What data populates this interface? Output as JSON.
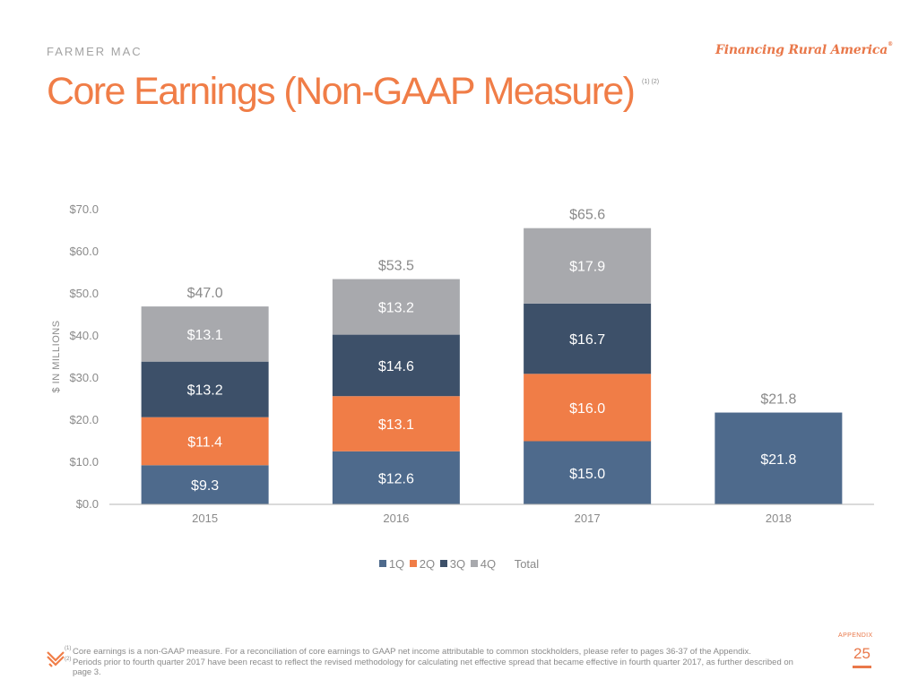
{
  "header": {
    "brand": "FARMER MAC",
    "tagline": "Financing Rural America",
    "tagline_mark": "®",
    "title": "Core Earnings (Non-GAAP Measure)",
    "title_footnote_refs": "(1) (2)"
  },
  "colors": {
    "1Q": "#4e6a8c",
    "2Q": "#f07d47",
    "3Q": "#3d5069",
    "4Q": "#a8a9ad",
    "accent": "#f07d47",
    "text_gray": "#8a8a8a"
  },
  "chart_data": {
    "type": "bar",
    "stacked": true,
    "title": "",
    "xlabel": "",
    "ylabel": "$ IN MILLIONS",
    "ylim": [
      0,
      70
    ],
    "yticks": [
      0,
      10,
      20,
      30,
      40,
      50,
      60,
      70
    ],
    "ytick_labels": [
      "$0.0",
      "$10.0",
      "$20.0",
      "$30.0",
      "$40.0",
      "$50.0",
      "$60.0",
      "$70.0"
    ],
    "grid": false,
    "categories": [
      "2015",
      "2016",
      "2017",
      "2018"
    ],
    "series": [
      {
        "name": "1Q",
        "values": [
          9.3,
          12.6,
          15.0,
          21.8
        ],
        "labels": [
          "$9.3",
          "$12.6",
          "$15.0",
          "$21.8"
        ]
      },
      {
        "name": "2Q",
        "values": [
          11.4,
          13.1,
          16.0,
          null
        ],
        "labels": [
          "$11.4",
          "$13.1",
          "$16.0",
          ""
        ]
      },
      {
        "name": "3Q",
        "values": [
          13.2,
          14.6,
          16.7,
          null
        ],
        "labels": [
          "$13.2",
          "$14.6",
          "$16.7",
          ""
        ]
      },
      {
        "name": "4Q",
        "values": [
          13.1,
          13.2,
          17.9,
          null
        ],
        "labels": [
          "$13.1",
          "$13.2",
          "$17.9",
          ""
        ]
      }
    ],
    "totals": {
      "name": "Total",
      "values": [
        47.0,
        53.5,
        65.6,
        21.8
      ],
      "labels": [
        "$47.0",
        "$53.5",
        "$65.6",
        "$21.8"
      ]
    },
    "legend": [
      "1Q",
      "2Q",
      "3Q",
      "4Q",
      "Total"
    ],
    "legend_position": "bottom"
  },
  "footer": {
    "section": "APPENDIX",
    "page_number": "25",
    "footnotes": [
      {
        "ref": "(1)",
        "text": "Core earnings is a non-GAAP measure. For a reconciliation of core earnings to GAAP net income attributable to common stockholders, please refer to pages 36-37 of the Appendix."
      },
      {
        "ref": "(2)",
        "text": "Periods prior to fourth quarter 2017 have been recast to reflect the revised methodology for calculating net effective spread that became effective in fourth quarter 2017, as further described on page 3."
      }
    ]
  }
}
